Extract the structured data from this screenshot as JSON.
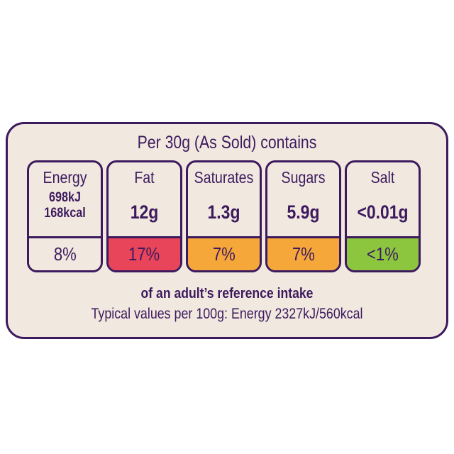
{
  "heading": "Per 30g (As Sold) contains",
  "nutrients": [
    {
      "name": "Energy",
      "values": [
        "698kJ",
        "168kcal"
      ],
      "percent": "8%",
      "color": "#f1e9df"
    },
    {
      "name": "Fat",
      "values": [
        "12g"
      ],
      "percent": "17%",
      "color": "#e8445a"
    },
    {
      "name": "Saturates",
      "values": [
        "1.3g"
      ],
      "percent": "7%",
      "color": "#f6a73a"
    },
    {
      "name": "Sugars",
      "values": [
        "5.9g"
      ],
      "percent": "7%",
      "color": "#f6a73a"
    },
    {
      "name": "Salt",
      "values": [
        "<0.01g"
      ],
      "percent": "<1%",
      "color": "#8cc63f"
    }
  ],
  "reference_intake": "of an adult’s reference intake",
  "typical_values": "Typical values per 100g: Energy 2327kJ/560kcal"
}
